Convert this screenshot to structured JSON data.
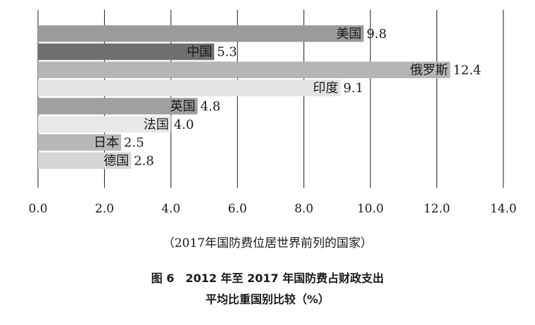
{
  "chart_data": {
    "type": "bar",
    "orientation": "horizontal",
    "categories": [
      "美国",
      "中国",
      "俄罗斯",
      "印度",
      "英国",
      "法国",
      "日本",
      "德国"
    ],
    "values": [
      9.8,
      5.3,
      12.4,
      9.1,
      4.8,
      4.0,
      2.5,
      2.8
    ],
    "value_labels": [
      "9.8",
      "5.3",
      "12.4",
      "9.1",
      "4.8",
      "4.0",
      "2.5",
      "2.8"
    ],
    "bar_colors": [
      "#9b9b9b",
      "#6f6f6f",
      "#b5b5b5",
      "#e3e3e3",
      "#a0a0a0",
      "#e8e8e8",
      "#b8b8b8",
      "#d5d5d5"
    ],
    "xlim": [
      0,
      14
    ],
    "xticks": [
      "0.0",
      "2.0",
      "4.0",
      "6.0",
      "8.0",
      "10.0",
      "12.0",
      "14.0"
    ],
    "grid": "vertical",
    "xlabel": "（2017年国防费位居世界前列的国家）",
    "title": "图 6　2012 年至 2017 年国防费占财政支出",
    "subtitle": "平均比重国别比较（%）"
  }
}
